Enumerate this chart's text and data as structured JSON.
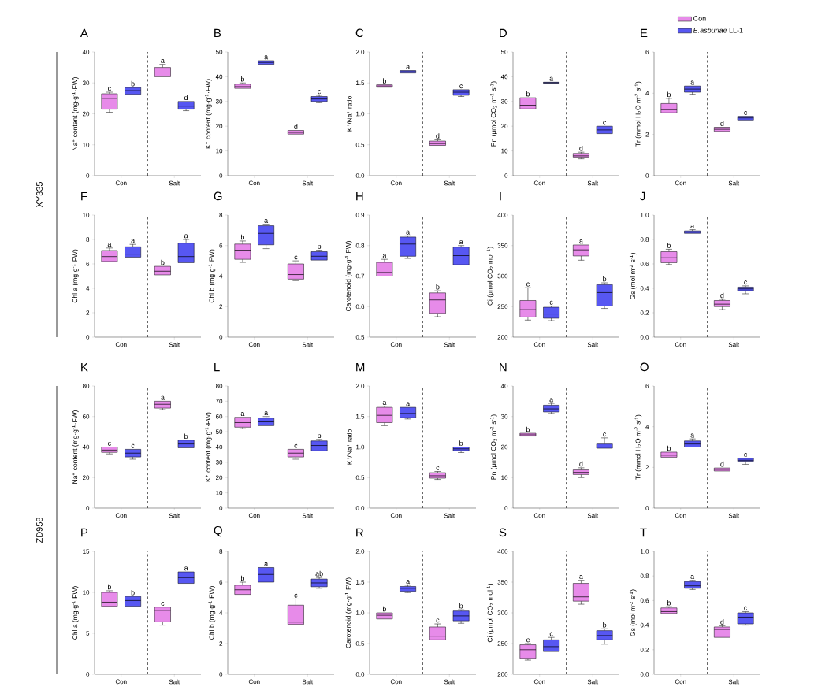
{
  "chart_data": [
    {
      "type": "box",
      "title": "A",
      "ylabel": "Na$^{+}$ content (mg·g$^{-1}$·FW)",
      "categories": [
        "Con",
        "Salt"
      ],
      "ylim": [
        0,
        40
      ],
      "yticks": [
        0,
        10,
        20,
        30,
        40
      ],
      "series": [
        {
          "color": "#e78be9",
          "boxes": [
            {
              "low": 20.5,
              "q1": 21.5,
              "median": 25,
              "q3": 26.5,
              "high": 27
            },
            {
              "low": 32,
              "q1": 32,
              "median": 33.5,
              "q3": 35,
              "high": 36
            }
          ]
        },
        {
          "color": "#5757f2",
          "boxes": [
            {
              "low": 26.3,
              "q1": 26.3,
              "median": 27.5,
              "q3": 28.5,
              "high": 28.5
            },
            {
              "low": 21,
              "q1": 21.5,
              "median": 22.5,
              "q3": 24,
              "high": 24
            }
          ]
        }
      ],
      "annotations": [
        "c",
        "b",
        "a",
        "d"
      ]
    },
    {
      "type": "box",
      "title": "B",
      "ylabel": "K$^{+}$ content (mg·g$^{-1}$·FW)",
      "categories": [
        "Con",
        "Salt"
      ],
      "ylim": [
        0,
        50
      ],
      "yticks": [
        0,
        10,
        20,
        30,
        40,
        50
      ],
      "series": [
        {
          "color": "#e78be9",
          "boxes": [
            {
              "low": 35.3,
              "q1": 35.3,
              "median": 36,
              "q3": 37,
              "high": 37.5
            },
            {
              "low": 16.8,
              "q1": 16.8,
              "median": 17.5,
              "q3": 18.3,
              "high": 18.3
            }
          ]
        },
        {
          "color": "#5757f2",
          "boxes": [
            {
              "low": 45,
              "q1": 45,
              "median": 45.8,
              "q3": 46.5,
              "high": 46.5
            },
            {
              "low": 29.5,
              "q1": 30,
              "median": 31,
              "q3": 32,
              "high": 32.5
            }
          ]
        }
      ],
      "annotations": [
        "b",
        "a",
        "d",
        "c"
      ]
    },
    {
      "type": "box",
      "title": "C",
      "ylabel": "K$^{+}$/Na$^{+}$ ratio",
      "categories": [
        "Con",
        "Salt"
      ],
      "ylim": [
        0,
        2
      ],
      "yticks": [
        {
          "value": 0,
          "label": "0.0"
        },
        {
          "value": 0.5,
          "label": "0.5"
        },
        {
          "value": 1,
          "label": "1.0"
        },
        {
          "value": 1.5,
          "label": "1.5"
        },
        {
          "value": 2,
          "label": "2.0"
        }
      ],
      "series": [
        {
          "color": "#e78be9",
          "boxes": [
            {
              "low": 1.43,
              "q1": 1.43,
              "median": 1.45,
              "q3": 1.47,
              "high": 1.47
            },
            {
              "low": 0.49,
              "q1": 0.49,
              "median": 0.52,
              "q3": 0.56,
              "high": 0.58
            }
          ]
        },
        {
          "color": "#5757f2",
          "boxes": [
            {
              "low": 1.66,
              "q1": 1.66,
              "median": 1.68,
              "q3": 1.7,
              "high": 1.7
            },
            {
              "low": 1.28,
              "q1": 1.3,
              "median": 1.35,
              "q3": 1.39,
              "high": 1.39
            }
          ]
        }
      ],
      "annotations": [
        "b",
        "a",
        "d",
        "c"
      ]
    },
    {
      "type": "box",
      "title": "D",
      "ylabel": "Pn (μmol CO$_{2}$ m$^{-2}$ s$^{-1}$)",
      "categories": [
        "Con",
        "Salt"
      ],
      "ylim": [
        0,
        50
      ],
      "yticks": [
        0,
        10,
        20,
        30,
        40,
        50
      ],
      "series": [
        {
          "color": "#e78be9",
          "boxes": [
            {
              "low": 27,
              "q1": 27,
              "median": 28.5,
              "q3": 31.5,
              "high": 31.5
            },
            {
              "low": 6.8,
              "q1": 7.5,
              "median": 8,
              "q3": 9,
              "high": 9.5
            }
          ]
        },
        {
          "color": "#5757f2",
          "boxes": [
            {
              "low": 37.4,
              "q1": 37.4,
              "median": 37.6,
              "q3": 37.8,
              "high": 37.8
            },
            {
              "low": 17,
              "q1": 17,
              "median": 18.5,
              "q3": 20,
              "high": 20
            }
          ]
        }
      ],
      "annotations": [
        "b",
        "a",
        "d",
        "c"
      ]
    },
    {
      "type": "box",
      "title": "E",
      "ylabel": "Tr (mmol H$_{2}$O m$^{-2}$ s$^{-1}$)",
      "categories": [
        "Con",
        "Salt"
      ],
      "ylim": [
        0,
        6
      ],
      "yticks": [
        0,
        2,
        4,
        6
      ],
      "legend": "top right",
      "series": [
        {
          "name": "Con",
          "color": "#e78be9",
          "boxes": [
            {
              "low": 3.05,
              "q1": 3.05,
              "median": 3.2,
              "q3": 3.5,
              "high": 3.75
            },
            {
              "low": 2.15,
              "q1": 2.15,
              "median": 2.25,
              "q3": 2.35,
              "high": 2.35
            }
          ]
        },
        {
          "name": "*E.asburiae* LL-1",
          "color": "#5757f2",
          "boxes": [
            {
              "low": 3.95,
              "q1": 4.05,
              "median": 4.2,
              "q3": 4.35,
              "high": 4.35
            },
            {
              "low": 2.7,
              "q1": 2.7,
              "median": 2.8,
              "q3": 2.88,
              "high": 2.88
            }
          ]
        }
      ],
      "annotations": [
        "b",
        "a",
        "d",
        "c"
      ]
    },
    {
      "type": "box",
      "title": "F",
      "ylabel": "Chl a (mg·g$^{-1}$ FW)",
      "categories": [
        "Con",
        "Salt"
      ],
      "ylim": [
        0,
        10
      ],
      "yticks": [
        0,
        2,
        4,
        6,
        8,
        10
      ],
      "series": [
        {
          "color": "#e78be9",
          "boxes": [
            {
              "low": 6.2,
              "q1": 6.2,
              "median": 6.6,
              "q3": 7.1,
              "high": 7.3
            },
            {
              "low": 5.1,
              "q1": 5.1,
              "median": 5.4,
              "q3": 5.8,
              "high": 5.8
            }
          ]
        },
        {
          "color": "#5757f2",
          "boxes": [
            {
              "low": 6.55,
              "q1": 6.55,
              "median": 6.8,
              "q3": 7.4,
              "high": 7.6
            },
            {
              "low": 6.1,
              "q1": 6.1,
              "median": 6.6,
              "q3": 7.7,
              "high": 8
            }
          ]
        }
      ],
      "annotations": [
        "a",
        "a",
        "b",
        "a"
      ]
    },
    {
      "type": "box",
      "title": "G",
      "ylabel": "Chl b (mg·g$^{-1}$ FW)",
      "categories": [
        "Con",
        "Salt"
      ],
      "ylim": [
        0,
        8
      ],
      "yticks": [
        0,
        2,
        4,
        6,
        8
      ],
      "series": [
        {
          "color": "#e78be9",
          "boxes": [
            {
              "low": 4.9,
              "q1": 5.1,
              "median": 5.7,
              "q3": 6.1,
              "high": 6.3
            },
            {
              "low": 3.7,
              "q1": 3.8,
              "median": 4.1,
              "q3": 4.8,
              "high": 5
            }
          ]
        },
        {
          "color": "#5757f2",
          "boxes": [
            {
              "low": 5.8,
              "q1": 6.05,
              "median": 6.8,
              "q3": 7.3,
              "high": 7.4
            },
            {
              "low": 5.05,
              "q1": 5.05,
              "median": 5.3,
              "q3": 5.6,
              "high": 5.7
            }
          ]
        }
      ],
      "annotations": [
        "b",
        "a",
        "c",
        "b"
      ]
    },
    {
      "type": "box",
      "title": "H",
      "ylabel": "Carotenoid (mg·g$^{-1}$ FW)",
      "categories": [
        "Con",
        "Salt"
      ],
      "ylim": [
        0.5,
        0.9
      ],
      "yticks": [
        0.5,
        0.6,
        0.7,
        0.8,
        0.9
      ],
      "series": [
        {
          "color": "#e78be9",
          "boxes": [
            {
              "low": 0.7,
              "q1": 0.7,
              "median": 0.712,
              "q3": 0.745,
              "high": 0.755
            },
            {
              "low": 0.567,
              "q1": 0.578,
              "median": 0.622,
              "q3": 0.645,
              "high": 0.652
            }
          ]
        },
        {
          "color": "#5757f2",
          "boxes": [
            {
              "low": 0.758,
              "q1": 0.765,
              "median": 0.805,
              "q3": 0.828,
              "high": 0.832
            },
            {
              "low": 0.737,
              "q1": 0.737,
              "median": 0.767,
              "q3": 0.795,
              "high": 0.8
            }
          ]
        }
      ],
      "annotations": [
        "a",
        "a",
        "b",
        "a"
      ]
    },
    {
      "type": "box",
      "title": "I",
      "ylabel": "Ci (μmol CO$_{2}$ mol$^{-1}$)",
      "categories": [
        "Con",
        "Salt"
      ],
      "ylim": [
        200,
        400
      ],
      "yticks": [
        200,
        250,
        300,
        350,
        400
      ],
      "series": [
        {
          "color": "#e78be9",
          "boxes": [
            {
              "low": 228,
              "q1": 233,
              "median": 245,
              "q3": 260,
              "high": 281
            },
            {
              "low": 326,
              "q1": 333,
              "median": 343,
              "q3": 351,
              "high": 351
            }
          ]
        },
        {
          "color": "#5757f2",
          "boxes": [
            {
              "low": 227,
              "q1": 231,
              "median": 238,
              "q3": 249,
              "high": 251
            },
            {
              "low": 247,
              "q1": 251,
              "median": 273,
              "q3": 286,
              "high": 289
            }
          ]
        }
      ],
      "annotations": [
        "c",
        "c",
        "a",
        "b"
      ]
    },
    {
      "type": "box",
      "title": "J",
      "ylabel": "Gs (mol m$^{-2}$ s$^{-1}$)",
      "categories": [
        "Con",
        "Salt"
      ],
      "ylim": [
        0,
        1
      ],
      "yticks": [
        {
          "value": 0,
          "label": "0.0"
        },
        0.2,
        0.4,
        0.6,
        0.8,
        {
          "value": 1,
          "label": "1.0"
        }
      ],
      "series": [
        {
          "color": "#e78be9",
          "boxes": [
            {
              "low": 0.595,
              "q1": 0.61,
              "median": 0.65,
              "q3": 0.7,
              "high": 0.72
            },
            {
              "low": 0.225,
              "q1": 0.25,
              "median": 0.27,
              "q3": 0.3,
              "high": 0.31
            }
          ]
        },
        {
          "color": "#5757f2",
          "boxes": [
            {
              "low": 0.85,
              "q1": 0.85,
              "median": 0.86,
              "q3": 0.87,
              "high": 0.88
            },
            {
              "low": 0.355,
              "q1": 0.38,
              "median": 0.395,
              "q3": 0.41,
              "high": 0.42
            }
          ]
        }
      ],
      "annotations": [
        "b",
        "a",
        "d",
        "c"
      ]
    },
    {
      "type": "box",
      "title": "K",
      "ylabel": "Na$^{+}$ content (mg·g$^{-1}$·FW)",
      "categories": [
        "Con",
        "Salt"
      ],
      "ylim": [
        0,
        80
      ],
      "yticks": [
        0,
        20,
        40,
        60,
        80
      ],
      "series": [
        {
          "color": "#e78be9",
          "boxes": [
            {
              "low": 35.5,
              "q1": 36.5,
              "median": 38,
              "q3": 40,
              "high": 40
            },
            {
              "low": 64.5,
              "q1": 65.5,
              "median": 68,
              "q3": 70,
              "high": 70
            }
          ]
        },
        {
          "color": "#5757f2",
          "boxes": [
            {
              "low": 32,
              "q1": 33.5,
              "median": 36,
              "q3": 38.5,
              "high": 38.5
            },
            {
              "low": 39.5,
              "q1": 39.5,
              "median": 42,
              "q3": 44.5,
              "high": 44.5
            }
          ]
        }
      ],
      "annotations": [
        "c",
        "c",
        "a",
        "b"
      ]
    },
    {
      "type": "box",
      "title": "L",
      "ylabel": "K$^{+}$ content (mg·g$^{-1}$·FW)",
      "categories": [
        "Con",
        "Salt"
      ],
      "ylim": [
        0,
        80
      ],
      "yticks": [
        0,
        10,
        20,
        30,
        40,
        50,
        60,
        70,
        80
      ],
      "series": [
        {
          "color": "#e78be9",
          "boxes": [
            {
              "low": 52,
              "q1": 53,
              "median": 56,
              "q3": 59.5,
              "high": 59.5
            },
            {
              "low": 32,
              "q1": 33.5,
              "median": 36,
              "q3": 38.5,
              "high": 38.5
            }
          ]
        },
        {
          "color": "#5757f2",
          "boxes": [
            {
              "low": 54,
              "q1": 54,
              "median": 56.5,
              "q3": 59,
              "high": 60
            },
            {
              "low": 37.5,
              "q1": 37.5,
              "median": 41,
              "q3": 44,
              "high": 45
            }
          ]
        }
      ],
      "annotations": [
        "a",
        "a",
        "c",
        "b"
      ]
    },
    {
      "type": "box",
      "title": "M",
      "ylabel": "K$^{+}$/Na$^{+}$ ratio",
      "categories": [
        "Con",
        "Salt"
      ],
      "ylim": [
        0,
        2
      ],
      "yticks": [
        {
          "value": 0,
          "label": "0.0"
        },
        {
          "value": 0.5,
          "label": "0.5"
        },
        {
          "value": 1,
          "label": "1.0"
        },
        {
          "value": 1.5,
          "label": "1.5"
        },
        {
          "value": 2,
          "label": "2.0"
        }
      ],
      "series": [
        {
          "color": "#e78be9",
          "boxes": [
            {
              "low": 1.35,
              "q1": 1.4,
              "median": 1.52,
              "q3": 1.65,
              "high": 1.67
            },
            {
              "low": 0.47,
              "q1": 0.49,
              "median": 0.53,
              "q3": 0.58,
              "high": 0.6
            }
          ]
        },
        {
          "color": "#5757f2",
          "boxes": [
            {
              "low": 1.46,
              "q1": 1.48,
              "median": 1.55,
              "q3": 1.65,
              "high": 1.65
            },
            {
              "low": 0.91,
              "q1": 0.94,
              "median": 0.97,
              "q3": 1,
              "high": 1
            }
          ]
        }
      ],
      "annotations": [
        "a",
        "a",
        "c",
        "b"
      ]
    },
    {
      "type": "box",
      "title": "N",
      "ylabel": "Pn (μmol CO$_{2}$ m$^{-2}$ s$^{-1}$)",
      "categories": [
        "Con",
        "Salt"
      ],
      "ylim": [
        0,
        40
      ],
      "yticks": [
        0,
        10,
        20,
        30,
        40
      ],
      "series": [
        {
          "color": "#e78be9",
          "boxes": [
            {
              "low": 23.6,
              "q1": 23.6,
              "median": 24,
              "q3": 24.5,
              "high": 24.5
            },
            {
              "low": 10,
              "q1": 11,
              "median": 11.7,
              "q3": 12.5,
              "high": 13.2
            }
          ]
        },
        {
          "color": "#5757f2",
          "boxes": [
            {
              "low": 31,
              "q1": 31.5,
              "median": 32.5,
              "q3": 33.7,
              "high": 34.3
            },
            {
              "low": 19.6,
              "q1": 19.6,
              "median": 20,
              "q3": 21,
              "high": 23
            }
          ]
        }
      ],
      "annotations": [
        "b",
        "a",
        "d",
        "c"
      ]
    },
    {
      "type": "box",
      "title": "O",
      "ylabel": "Tr (mmol H$_{2}$O m$^{-2}$ s$^{-1}$)",
      "categories": [
        "Con",
        "Salt"
      ],
      "ylim": [
        0,
        6
      ],
      "yticks": [
        0,
        2,
        4,
        6
      ],
      "series": [
        {
          "color": "#e78be9",
          "boxes": [
            {
              "low": 2.5,
              "q1": 2.5,
              "median": 2.6,
              "q3": 2.75,
              "high": 2.75
            },
            {
              "low": 1.82,
              "q1": 1.82,
              "median": 1.9,
              "q3": 1.97,
              "high": 1.97
            }
          ]
        },
        {
          "color": "#5757f2",
          "boxes": [
            {
              "low": 3,
              "q1": 3,
              "median": 3.15,
              "q3": 3.3,
              "high": 3.4
            },
            {
              "low": 2.15,
              "q1": 2.3,
              "median": 2.35,
              "q3": 2.45,
              "high": 2.45
            }
          ]
        }
      ],
      "annotations": [
        "b",
        "a",
        "d",
        "c"
      ]
    },
    {
      "type": "box",
      "title": "P",
      "ylabel": "Chl a (mg·g$^{-1}$ FW)",
      "categories": [
        "Con",
        "Salt"
      ],
      "ylim": [
        0,
        15
      ],
      "yticks": [
        0,
        5,
        10,
        15
      ],
      "series": [
        {
          "color": "#e78be9",
          "boxes": [
            {
              "low": 8.3,
              "q1": 8.3,
              "median": 8.8,
              "q3": 10,
              "high": 10.2
            },
            {
              "low": 6,
              "q1": 6.4,
              "median": 7.8,
              "q3": 8.2,
              "high": 8.2
            }
          ]
        },
        {
          "color": "#5757f2",
          "boxes": [
            {
              "low": 8.3,
              "q1": 8.3,
              "median": 9,
              "q3": 9.5,
              "high": 9.5
            },
            {
              "low": 11.1,
              "q1": 11.1,
              "median": 11.8,
              "q3": 12.5,
              "high": 12.5
            }
          ]
        }
      ],
      "annotations": [
        "b",
        "b",
        "c",
        "a"
      ]
    },
    {
      "type": "box",
      "title": "Q",
      "ylabel": "Chl b (mg·g$^{-1}$ FW)",
      "categories": [
        "Con",
        "Salt"
      ],
      "ylim": [
        0,
        8
      ],
      "yticks": [
        0,
        2,
        4,
        6,
        8
      ],
      "series": [
        {
          "color": "#e78be9",
          "boxes": [
            {
              "low": 5.2,
              "q1": 5.2,
              "median": 5.5,
              "q3": 5.8,
              "high": 6
            },
            {
              "low": 3.25,
              "q1": 3.25,
              "median": 3.4,
              "q3": 4.5,
              "high": 4.9
            }
          ]
        },
        {
          "color": "#5757f2",
          "boxes": [
            {
              "low": 6,
              "q1": 6,
              "median": 6.5,
              "q3": 6.95,
              "high": 6.95
            },
            {
              "low": 5.6,
              "q1": 5.7,
              "median": 5.95,
              "q3": 6.2,
              "high": 6.3
            }
          ]
        }
      ],
      "annotations": [
        "b",
        "a",
        "c",
        "ab"
      ]
    },
    {
      "type": "box",
      "title": "R",
      "ylabel": "Carotenoid (mg·g$^{-1}$ FW)",
      "categories": [
        "Con",
        "Salt"
      ],
      "ylim": [
        0,
        2
      ],
      "yticks": [
        {
          "value": 0,
          "label": "0.0"
        },
        {
          "value": 0.5,
          "label": "0.5"
        },
        {
          "value": 1,
          "label": "1.0"
        },
        {
          "value": 1.5,
          "label": "1.5"
        },
        {
          "value": 2,
          "label": "2.0"
        }
      ],
      "series": [
        {
          "color": "#e78be9",
          "boxes": [
            {
              "low": 0.9,
              "q1": 0.9,
              "median": 0.96,
              "q3": 1,
              "high": 1
            },
            {
              "low": 0.56,
              "q1": 0.56,
              "median": 0.62,
              "q3": 0.77,
              "high": 0.82
            }
          ]
        },
        {
          "color": "#5757f2",
          "boxes": [
            {
              "low": 1.33,
              "q1": 1.35,
              "median": 1.4,
              "q3": 1.43,
              "high": 1.45
            },
            {
              "low": 0.83,
              "q1": 0.87,
              "median": 0.95,
              "q3": 1.03,
              "high": 1.05
            }
          ]
        }
      ],
      "annotations": [
        "b",
        "a",
        "c",
        "b"
      ]
    },
    {
      "type": "box",
      "title": "S",
      "ylabel": "Ci (μmol CO$_{2}$ mol$^{-1}$)",
      "categories": [
        "Con",
        "Salt"
      ],
      "ylim": [
        200,
        400
      ],
      "yticks": [
        200,
        250,
        300,
        350,
        400
      ],
      "series": [
        {
          "color": "#e78be9",
          "boxes": [
            {
              "low": 223,
              "q1": 226,
              "median": 240,
              "q3": 248,
              "high": 250
            },
            {
              "low": 314,
              "q1": 319,
              "median": 326,
              "q3": 348,
              "high": 353
            }
          ]
        },
        {
          "color": "#5757f2",
          "boxes": [
            {
              "low": 237,
              "q1": 237,
              "median": 245,
              "q3": 256,
              "high": 260
            },
            {
              "low": 249,
              "q1": 256,
              "median": 263,
              "q3": 271,
              "high": 274
            }
          ]
        }
      ],
      "annotations": [
        "c",
        "c",
        "a",
        "b"
      ]
    },
    {
      "type": "box",
      "title": "T",
      "ylabel": "Gs (mol m$^{-2}$ s$^{-1}$)",
      "categories": [
        "Con",
        "Salt"
      ],
      "ylim": [
        0,
        1
      ],
      "yticks": [
        {
          "value": 0,
          "label": "0.0"
        },
        0.2,
        0.4,
        0.6,
        0.8,
        {
          "value": 1,
          "label": "1.0"
        }
      ],
      "series": [
        {
          "color": "#e78be9",
          "boxes": [
            {
              "low": 0.495,
              "q1": 0.495,
              "median": 0.51,
              "q3": 0.54,
              "high": 0.55
            },
            {
              "low": 0.3,
              "q1": 0.3,
              "median": 0.365,
              "q3": 0.385,
              "high": 0.395
            }
          ]
        },
        {
          "color": "#5757f2",
          "boxes": [
            {
              "low": 0.69,
              "q1": 0.7,
              "median": 0.72,
              "q3": 0.755,
              "high": 0.765
            },
            {
              "low": 0.4,
              "q1": 0.41,
              "median": 0.465,
              "q3": 0.5,
              "high": 0.51
            }
          ]
        }
      ],
      "annotations": [
        "b",
        "a",
        "d",
        "c"
      ]
    },
    {
      "type": "other",
      "title": "XY335"
    },
    {
      "type": "other",
      "title": "ZD958"
    }
  ]
}
